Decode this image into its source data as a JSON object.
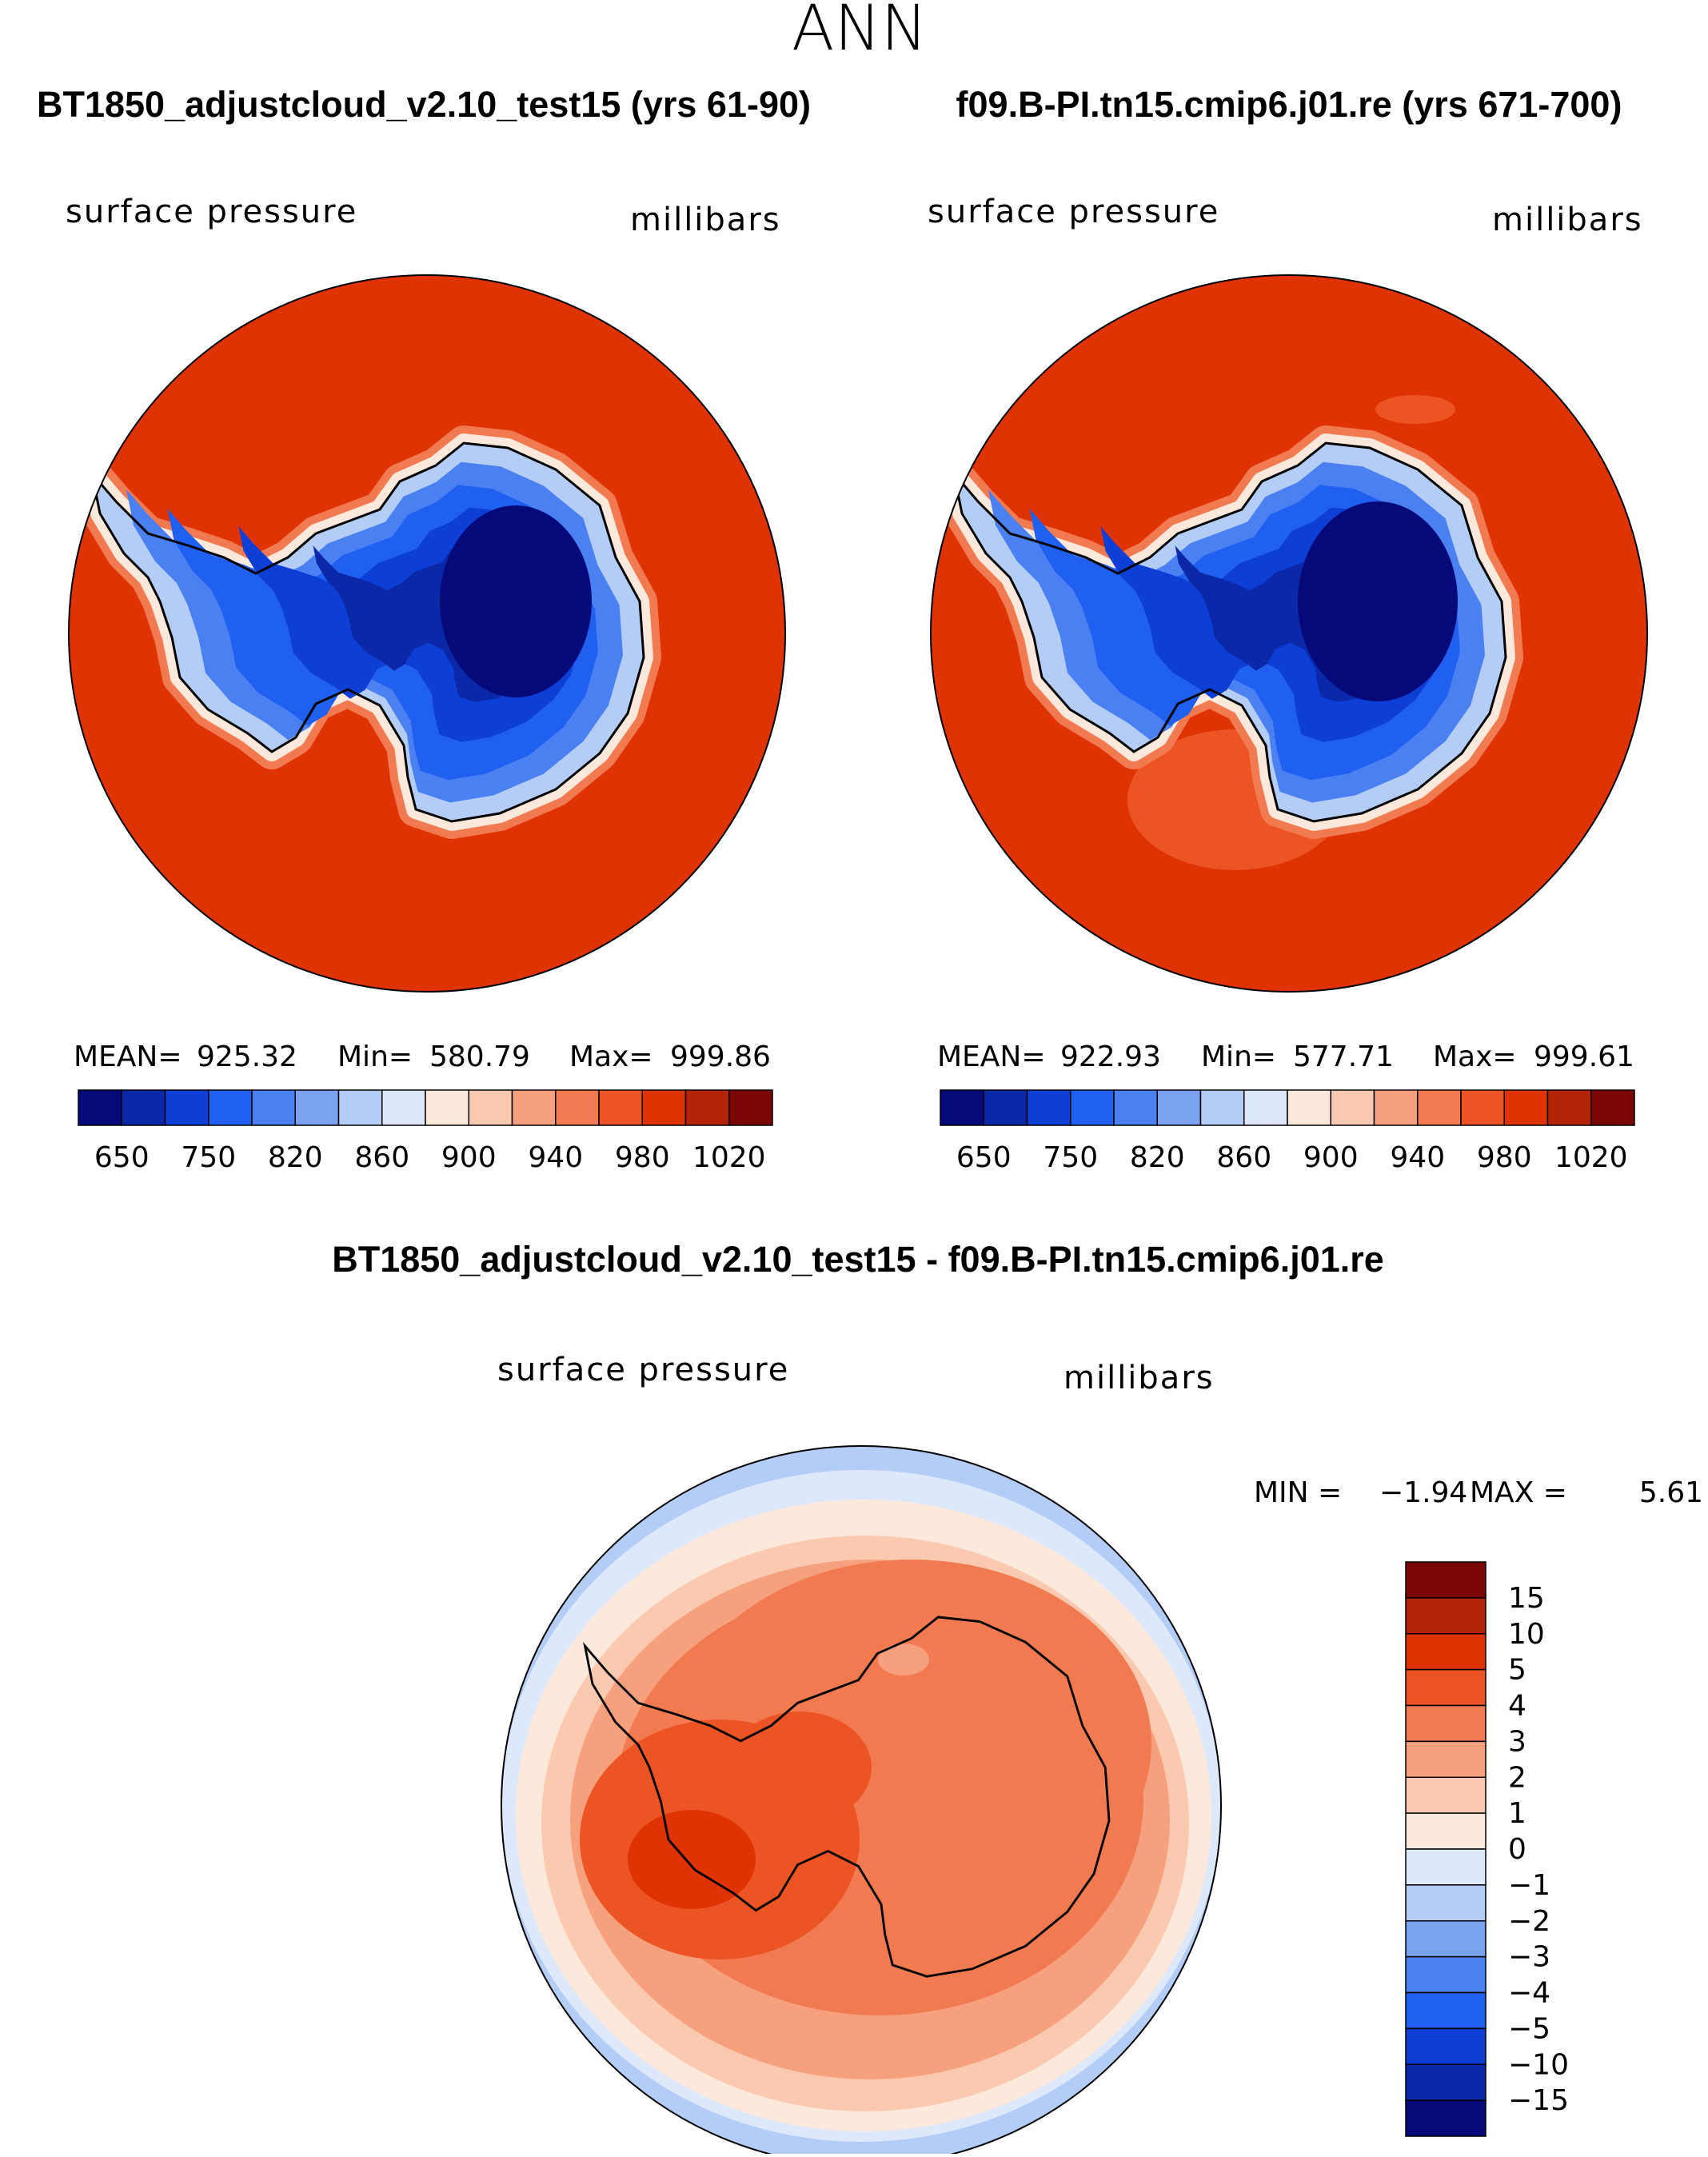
{
  "chart_data": {
    "type": "contour-map",
    "season": "ANN",
    "panels": [
      {
        "case": "BT1850_adjustcloud_v2.10_test15 (yrs 61-90)",
        "variable": "surface pressure",
        "units": "millibars",
        "stats": {
          "mean_label": "MEAN=",
          "mean": "925.32",
          "min_label": "Min=",
          "min": "580.79",
          "max_label": "Max=",
          "max": "999.86"
        },
        "levels": [
          "650",
          "750",
          "820",
          "860",
          "900",
          "940",
          "980",
          "1020"
        ]
      },
      {
        "case": "f09.B-PI.tn15.cmip6.j01.re (yrs 671-700)",
        "variable": "surface pressure",
        "units": "millibars",
        "stats": {
          "mean_label": "MEAN=",
          "mean": "922.93",
          "min_label": "Min=",
          "min": "577.71",
          "max_label": "Max=",
          "max": "999.61"
        },
        "levels": [
          "650",
          "750",
          "820",
          "860",
          "900",
          "940",
          "980",
          "1020"
        ]
      }
    ],
    "difference": {
      "title": "BT1850_adjustcloud_v2.10_test15 - f09.B-PI.tn15.cmip6.j01.re",
      "variable": "surface pressure",
      "units": "millibars",
      "min_label": "MIN =",
      "min": "−1.94",
      "max_label": "MAX =",
      "max": "5.61",
      "levels": [
        "15",
        "10",
        "5",
        "4",
        "3",
        "2",
        "1",
        "0",
        "−1",
        "−2",
        "−3",
        "−4",
        "−5",
        "−10",
        "−15"
      ]
    }
  },
  "colors": {
    "abs_scale": [
      "#050a7a",
      "#0a28a8",
      "#0d3fd6",
      "#2060f0",
      "#4a80f2",
      "#7aa2f0",
      "#b4cdf6",
      "#dde9fb",
      "#fde9dc",
      "#fbc9b0",
      "#f7a07e",
      "#f27a50",
      "#ec5424",
      "#e03304",
      "#b42306",
      "#7a0605"
    ],
    "diff_scale": [
      "#7a0605",
      "#b42306",
      "#e03304",
      "#ec5424",
      "#f27a50",
      "#f7a07e",
      "#fbc9b0",
      "#fde9dc",
      "#dde9fb",
      "#b4cdf6",
      "#7aa2f0",
      "#4a80f2",
      "#2060f0",
      "#0d3fd6",
      "#0a28a8",
      "#050a7a"
    ]
  }
}
